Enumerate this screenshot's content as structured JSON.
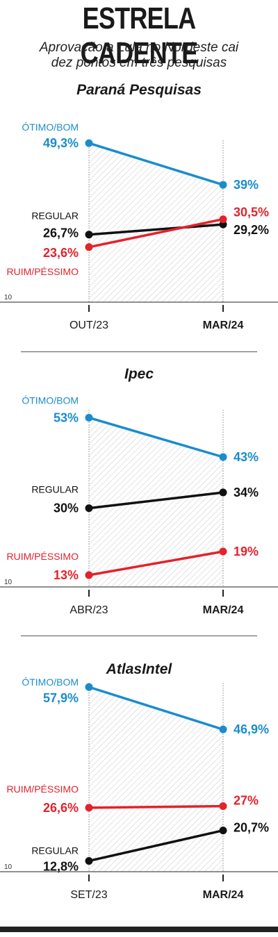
{
  "header": {
    "title": "ESTRELA CADENTE",
    "subtitle_line1": "Aprovação a Lula no Nordeste cai",
    "subtitle_line2": "dez pontos em três pesquisas"
  },
  "colors": {
    "otimo_bom": "#1a8ccc",
    "regular": "#111111",
    "ruim_pessimo": "#e3222b",
    "hatch": "#cfcfcf"
  },
  "chart_data": [
    {
      "type": "line",
      "title": "Paraná Pesquisas",
      "categories": [
        "OUT/23",
        "MAR/24"
      ],
      "axis_min_label": "10",
      "ylim": [
        10,
        50
      ],
      "series": [
        {
          "name": "ÓTIMO/BOM",
          "key": "otimo_bom",
          "values": [
            49.3,
            39.0
          ],
          "labels": [
            "49,3%",
            "39%"
          ]
        },
        {
          "name": "REGULAR",
          "key": "regular",
          "values": [
            26.7,
            29.2
          ],
          "labels": [
            "26,7%",
            "29,2%"
          ]
        },
        {
          "name": "RUIM/PÉSSIMO",
          "key": "ruim_pessimo",
          "values": [
            23.6,
            30.5
          ],
          "labels": [
            "23,6%",
            "30,5%"
          ]
        }
      ]
    },
    {
      "type": "line",
      "title": "Ipec",
      "categories": [
        "ABR/23",
        "MAR/24"
      ],
      "axis_min_label": "10",
      "ylim": [
        10,
        55
      ],
      "series": [
        {
          "name": "ÓTIMO/BOM",
          "key": "otimo_bom",
          "values": [
            53,
            43
          ],
          "labels": [
            "53%",
            "43%"
          ]
        },
        {
          "name": "REGULAR",
          "key": "regular",
          "values": [
            30,
            34
          ],
          "labels": [
            "30%",
            "34%"
          ]
        },
        {
          "name": "RUIM/PÉSSIMO",
          "key": "ruim_pessimo",
          "values": [
            13,
            19
          ],
          "labels": [
            "13%",
            "19%"
          ]
        }
      ]
    },
    {
      "type": "line",
      "title": "AtlasIntel",
      "categories": [
        "SET/23",
        "MAR/24"
      ],
      "axis_min_label": "10",
      "ylim": [
        10,
        59
      ],
      "series": [
        {
          "name": "ÓTIMO/BOM",
          "key": "otimo_bom",
          "values": [
            57.9,
            46.9
          ],
          "labels": [
            "57,9%",
            "46,9%"
          ]
        },
        {
          "name": "RUIM/PÉSSIMO",
          "key": "ruim_pessimo",
          "values": [
            26.6,
            27.0
          ],
          "labels": [
            "26,6%",
            "27%"
          ]
        },
        {
          "name": "REGULAR",
          "key": "regular",
          "values": [
            12.8,
            20.7
          ],
          "labels": [
            "12,8%",
            "20,7%"
          ]
        }
      ]
    }
  ]
}
